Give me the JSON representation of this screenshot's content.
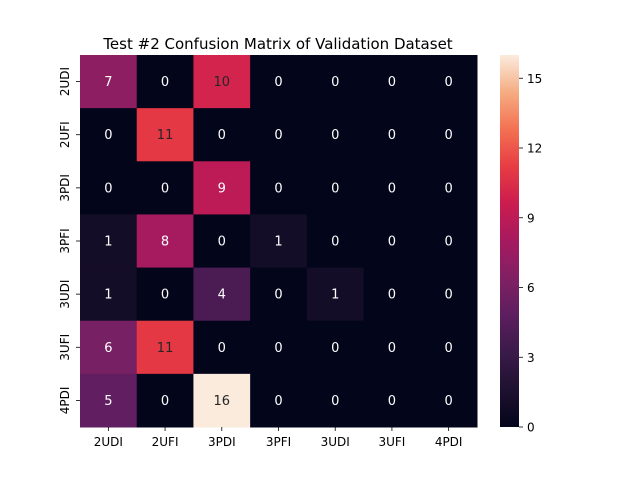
{
  "chart_data": {
    "type": "heatmap",
    "title": "Test #2 Confusion Matrix of Validation Dataset",
    "xlabel": "",
    "ylabel": "",
    "x_categories": [
      "2UDI",
      "2UFI",
      "3PDI",
      "3PFI",
      "3UDI",
      "3UFI",
      "4PDI"
    ],
    "y_categories": [
      "2UDI",
      "2UFI",
      "3PDI",
      "3PFI",
      "3UDI",
      "3UFI",
      "4PDI"
    ],
    "values": [
      [
        7,
        0,
        10,
        0,
        0,
        0,
        0
      ],
      [
        0,
        11,
        0,
        0,
        0,
        0,
        0
      ],
      [
        0,
        0,
        9,
        0,
        0,
        0,
        0
      ],
      [
        1,
        8,
        0,
        1,
        0,
        0,
        0
      ],
      [
        1,
        0,
        4,
        0,
        1,
        0,
        0
      ],
      [
        6,
        11,
        0,
        0,
        0,
        0,
        0
      ],
      [
        5,
        0,
        16,
        0,
        0,
        0,
        0
      ]
    ],
    "value_range": [
      0,
      16
    ],
    "colorbar_ticks": [
      0,
      3,
      6,
      9,
      12,
      15
    ],
    "colormap": "rocket",
    "annotated": true,
    "grid": false,
    "colorbar_position": "right"
  }
}
